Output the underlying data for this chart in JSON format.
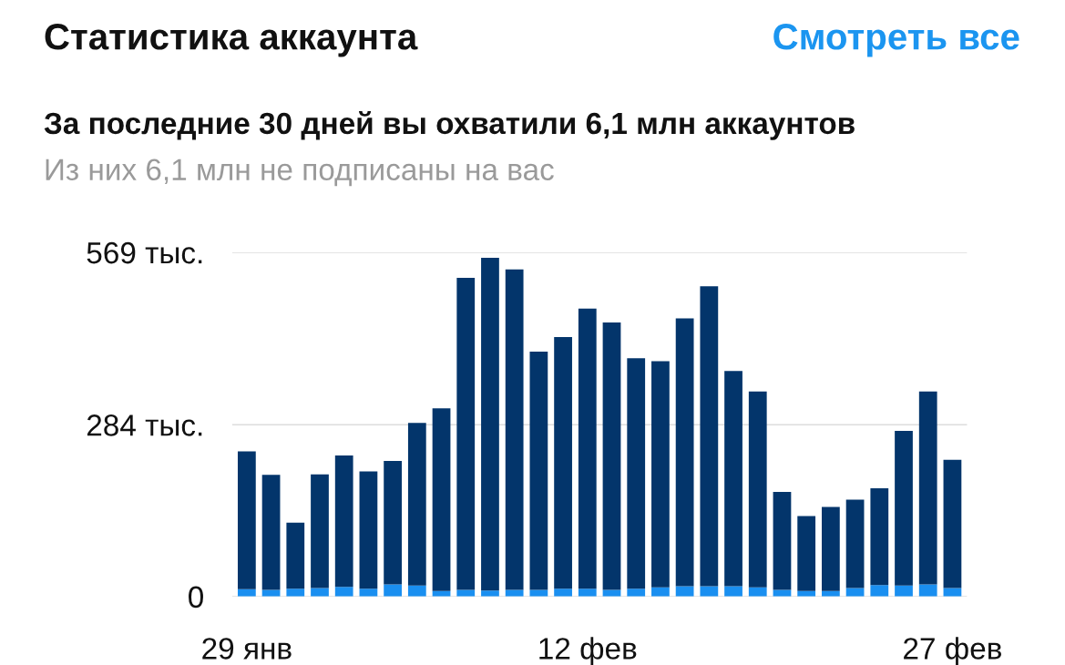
{
  "chart_data": {
    "type": "bar",
    "stacked": true,
    "title": "Статистика аккаунта",
    "subtitle": "За последние 30 дней вы охватили 6,1 млн аккаунтов",
    "annotations": [
      "Смотреть все",
      "Из них 6,1 млн не подписаны на вас"
    ],
    "categories": [
      "29 янв",
      null,
      null,
      null,
      null,
      null,
      null,
      null,
      null,
      null,
      null,
      null,
      null,
      null,
      "12 фев",
      null,
      null,
      null,
      null,
      null,
      null,
      null,
      null,
      null,
      null,
      null,
      null,
      null,
      null,
      "27 фев"
    ],
    "series": [
      {
        "color": "#1a8ff0",
        "values": [
          12,
          11,
          13,
          14,
          16,
          13,
          20,
          18,
          9,
          11,
          10,
          11,
          11,
          13,
          13,
          11,
          13,
          15,
          17,
          17,
          17,
          15,
          11,
          9,
          9,
          14,
          19,
          18,
          20,
          14
        ]
      },
      {
        "color": "#03356b",
        "values": [
          228,
          190,
          109,
          188,
          217,
          194,
          204,
          269,
          302,
          516,
          550,
          530,
          394,
          416,
          463,
          442,
          381,
          374,
          443,
          496,
          356,
          324,
          162,
          124,
          139,
          146,
          160,
          256,
          319,
          212
        ]
      }
    ],
    "ylim": [
      0,
      569
    ],
    "yticks": [
      {
        "value": 0,
        "label": "0"
      },
      {
        "value": 284,
        "label": "284 тыс."
      },
      {
        "value": 569,
        "label": "569 тыс."
      }
    ],
    "grid": "y"
  }
}
